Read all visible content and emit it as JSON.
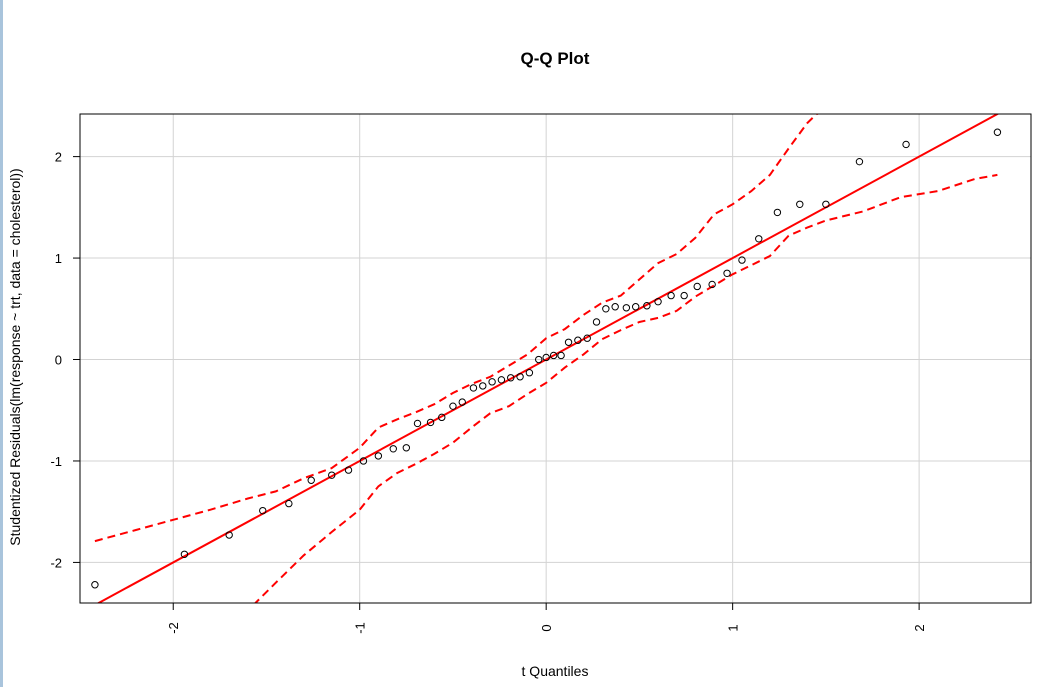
{
  "chart_data": {
    "type": "scatter",
    "title": "Q-Q Plot",
    "xlabel": "t Quantiles",
    "ylabel": "Studentized Residuals(lm(response ~ trt, data = cholesterol))",
    "xlim": [
      -2.5,
      2.6
    ],
    "ylim": [
      -2.4,
      2.42
    ],
    "grid": true,
    "x_ticks": [
      {
        "value": -2,
        "label": "-2"
      },
      {
        "value": -1,
        "label": "-1"
      },
      {
        "value": 0,
        "label": "0"
      },
      {
        "value": 1,
        "label": "1"
      },
      {
        "value": 2,
        "label": "2"
      }
    ],
    "y_ticks": [
      {
        "value": -2,
        "label": "-2"
      },
      {
        "value": -1,
        "label": "-1"
      },
      {
        "value": 0,
        "label": "0"
      },
      {
        "value": 1,
        "label": "1"
      },
      {
        "value": 2,
        "label": "2"
      }
    ],
    "points": {
      "x": [
        -2.42,
        -1.94,
        -1.7,
        -1.52,
        -1.38,
        -1.26,
        -1.15,
        -1.06,
        -0.98,
        -0.9,
        -0.82,
        -0.75,
        -0.69,
        -0.62,
        -0.56,
        -0.5,
        -0.45,
        -0.39,
        -0.34,
        -0.29,
        -0.24,
        -0.19,
        -0.14,
        -0.09,
        -0.04,
        0.0,
        0.04,
        0.08,
        0.12,
        0.17,
        0.22,
        0.27,
        0.32,
        0.37,
        0.43,
        0.48,
        0.54,
        0.6,
        0.67,
        0.74,
        0.81,
        0.89,
        0.97,
        1.05,
        1.14,
        1.24,
        1.36,
        1.5,
        1.68,
        1.93,
        2.42
      ],
      "y": [
        -2.22,
        -1.92,
        -1.73,
        -1.49,
        -1.42,
        -1.19,
        -1.14,
        -1.09,
        -1.0,
        -0.95,
        -0.88,
        -0.87,
        -0.63,
        -0.62,
        -0.57,
        -0.46,
        -0.42,
        -0.28,
        -0.26,
        -0.22,
        -0.2,
        -0.18,
        -0.17,
        -0.13,
        0.0,
        0.02,
        0.04,
        0.04,
        0.17,
        0.19,
        0.21,
        0.37,
        0.5,
        0.52,
        0.51,
        0.52,
        0.53,
        0.57,
        0.63,
        0.63,
        0.72,
        0.74,
        0.85,
        0.98,
        1.19,
        1.45,
        1.53,
        1.53,
        1.95,
        2.12,
        2.24
      ]
    },
    "reference_line": {
      "intercept": 0.0,
      "slope": 1.0,
      "color": "#ff0000"
    },
    "envelope": {
      "color": "#ff0000",
      "upper": {
        "x": [
          -2.42,
          -2.2,
          -2.0,
          -1.8,
          -1.6,
          -1.45,
          -1.3,
          -1.15,
          -1.0,
          -0.9,
          -0.8,
          -0.7,
          -0.6,
          -0.5,
          -0.4,
          -0.3,
          -0.2,
          -0.1,
          0.0,
          0.1,
          0.2,
          0.3,
          0.4,
          0.5,
          0.6,
          0.7,
          0.8,
          0.9,
          1.0,
          1.1,
          1.2,
          1.3,
          1.4,
          1.45,
          1.5
        ],
        "y": [
          -1.79,
          -1.68,
          -1.58,
          -1.48,
          -1.37,
          -1.3,
          -1.17,
          -1.07,
          -0.87,
          -0.67,
          -0.59,
          -0.52,
          -0.44,
          -0.33,
          -0.24,
          -0.17,
          -0.06,
          0.05,
          0.21,
          0.3,
          0.44,
          0.56,
          0.63,
          0.79,
          0.95,
          1.04,
          1.2,
          1.43,
          1.53,
          1.66,
          1.82,
          2.08,
          2.33,
          2.42,
          2.45
        ]
      },
      "lower": {
        "x": [
          -1.57,
          -1.45,
          -1.3,
          -1.15,
          -1.0,
          -0.9,
          -0.8,
          -0.7,
          -0.6,
          -0.5,
          -0.4,
          -0.3,
          -0.2,
          -0.1,
          0.0,
          0.1,
          0.2,
          0.3,
          0.4,
          0.5,
          0.6,
          0.7,
          0.8,
          0.9,
          1.0,
          1.1,
          1.2,
          1.3,
          1.4,
          1.5,
          1.7,
          1.9,
          2.1,
          2.3,
          2.42
        ],
        "y": [
          -2.42,
          -2.2,
          -1.93,
          -1.7,
          -1.48,
          -1.25,
          -1.12,
          -1.03,
          -0.93,
          -0.82,
          -0.67,
          -0.53,
          -0.46,
          -0.34,
          -0.23,
          -0.08,
          0.05,
          0.2,
          0.29,
          0.37,
          0.41,
          0.48,
          0.62,
          0.73,
          0.84,
          0.93,
          1.02,
          1.22,
          1.3,
          1.37,
          1.46,
          1.6,
          1.66,
          1.78,
          1.82
        ]
      }
    }
  }
}
